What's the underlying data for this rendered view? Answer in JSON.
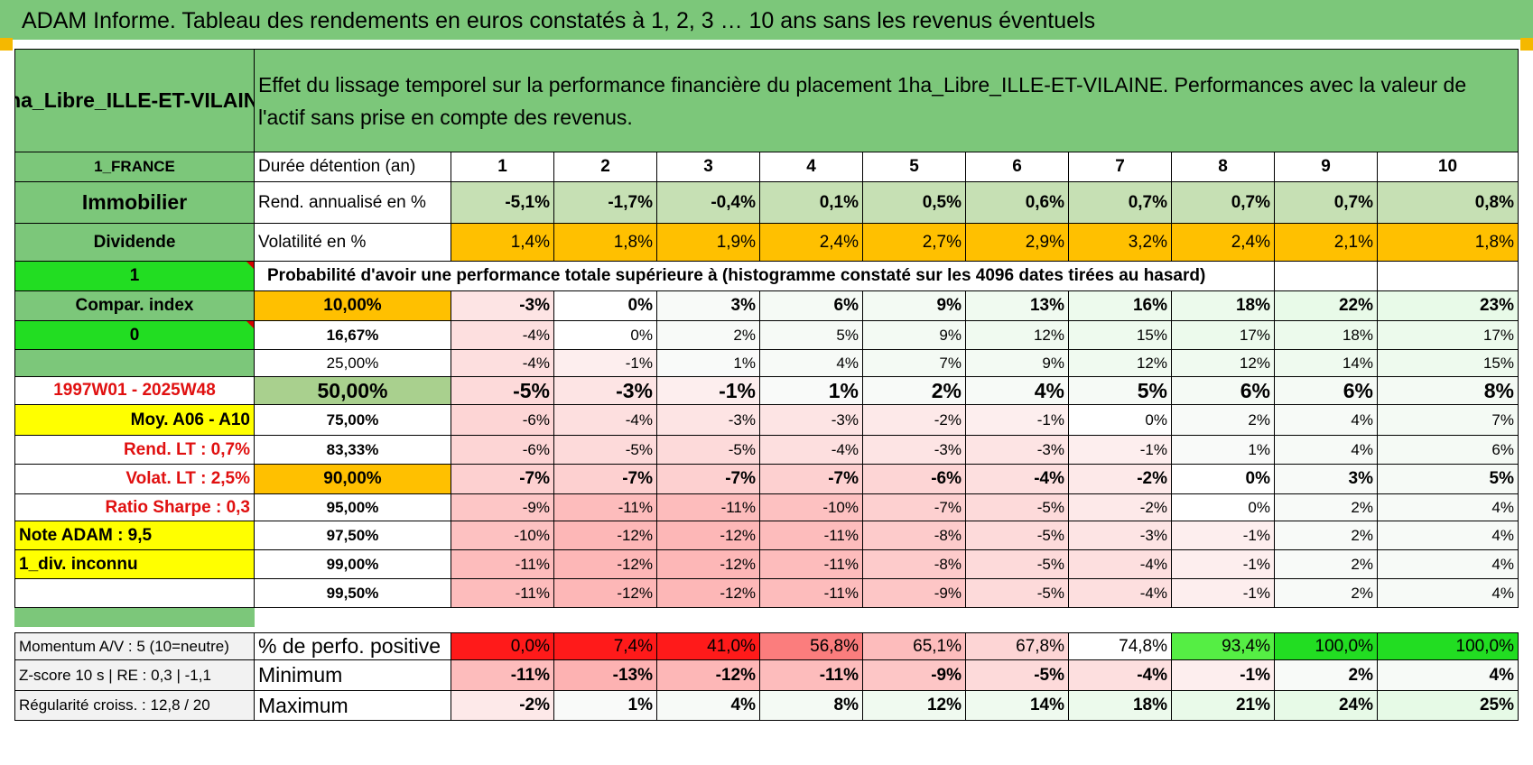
{
  "title": "ADAM Informe. Tableau des rendements en euros constatés à 1, 2, 3 … 10 ans sans les revenus éventuels",
  "asset_name": "1ha_Libre_ILLE-ET-VILAINE",
  "description": "Effet du lissage temporel sur la performance financière du placement 1ha_Libre_ILLE-ET-VILAINE. Performances avec la valeur de l'actif sans prise en compte des revenus.",
  "left_labels": [
    "1_FRANCE",
    "Immobilier",
    "Dividende",
    "1",
    "Compar. index",
    "0",
    "",
    "1997W01 - 2025W48",
    "Moy. A06 - A10",
    "Rend. LT :    0,7%",
    "Volat. LT :    2,5%",
    "Ratio Sharpe :     0,3",
    "Note ADAM : 9,5",
    "1_div. inconnu",
    ""
  ],
  "header_label": "Durée détention (an)",
  "years": [
    "1",
    "2",
    "3",
    "4",
    "5",
    "6",
    "7",
    "8",
    "9",
    "10"
  ],
  "rend_label": "Rend. annualisé en %",
  "rend": [
    "-5,1%",
    "-1,7%",
    "-0,4%",
    "0,1%",
    "0,5%",
    "0,6%",
    "0,7%",
    "0,7%",
    "0,7%",
    "0,8%"
  ],
  "vol_label": "Volatilité en %",
  "vol": [
    "1,4%",
    "1,8%",
    "1,9%",
    "2,4%",
    "2,7%",
    "2,9%",
    "3,2%",
    "2,4%",
    "2,1%",
    "1,8%"
  ],
  "prob_label": "Probabilité d'avoir une performance totale supérieure à (histogramme constaté sur les 4096 dates tirées au hasard)",
  "percentiles": [
    {
      "p": "10,00%",
      "v": [
        "-3%",
        "0%",
        "3%",
        "6%",
        "9%",
        "13%",
        "16%",
        "18%",
        "22%",
        "23%"
      ]
    },
    {
      "p": "16,67%",
      "v": [
        "-4%",
        "0%",
        "2%",
        "5%",
        "9%",
        "12%",
        "15%",
        "17%",
        "18%",
        "17%"
      ]
    },
    {
      "p": "25,00%",
      "v": [
        "-4%",
        "-1%",
        "1%",
        "4%",
        "7%",
        "9%",
        "12%",
        "12%",
        "14%",
        "15%"
      ]
    },
    {
      "p": "50,00%",
      "v": [
        "-5%",
        "-3%",
        "-1%",
        "1%",
        "2%",
        "4%",
        "5%",
        "6%",
        "6%",
        "8%"
      ]
    },
    {
      "p": "75,00%",
      "v": [
        "-6%",
        "-4%",
        "-3%",
        "-3%",
        "-2%",
        "-1%",
        "0%",
        "2%",
        "4%",
        "7%"
      ]
    },
    {
      "p": "83,33%",
      "v": [
        "-6%",
        "-5%",
        "-5%",
        "-4%",
        "-3%",
        "-3%",
        "-1%",
        "1%",
        "4%",
        "6%"
      ]
    },
    {
      "p": "90,00%",
      "v": [
        "-7%",
        "-7%",
        "-7%",
        "-7%",
        "-6%",
        "-4%",
        "-2%",
        "0%",
        "3%",
        "5%"
      ]
    },
    {
      "p": "95,00%",
      "v": [
        "-9%",
        "-11%",
        "-11%",
        "-10%",
        "-7%",
        "-5%",
        "-2%",
        "0%",
        "2%",
        "4%"
      ]
    },
    {
      "p": "97,50%",
      "v": [
        "-10%",
        "-12%",
        "-12%",
        "-11%",
        "-8%",
        "-5%",
        "-3%",
        "-1%",
        "2%",
        "4%"
      ]
    },
    {
      "p": "99,00%",
      "v": [
        "-11%",
        "-12%",
        "-12%",
        "-11%",
        "-8%",
        "-5%",
        "-4%",
        "-1%",
        "2%",
        "4%"
      ]
    },
    {
      "p": "99,50%",
      "v": [
        "-11%",
        "-12%",
        "-12%",
        "-11%",
        "-9%",
        "-5%",
        "-4%",
        "-1%",
        "2%",
        "4%"
      ]
    }
  ],
  "momentum_label": "Momentum A/V : 5 (10=neutre)",
  "zscore_label": "Z-score 10 s | RE : 0,3 | -1,1",
  "regul_label": "Régularité croiss. : 12,8 / 20",
  "pos_label": "% de perfo. positive",
  "pos": [
    "0,0%",
    "7,4%",
    "41,0%",
    "56,8%",
    "65,1%",
    "67,8%",
    "74,8%",
    "93,4%",
    "100,0%",
    "100,0%"
  ],
  "min_label": "Minimum",
  "min": [
    "-11%",
    "-13%",
    "-12%",
    "-11%",
    "-9%",
    "-5%",
    "-4%",
    "-1%",
    "2%",
    "4%"
  ],
  "max_label": "Maximum",
  "max": [
    "-2%",
    "1%",
    "4%",
    "8%",
    "12%",
    "14%",
    "18%",
    "21%",
    "24%",
    "25%"
  ],
  "colors": {
    "green_header": "#7cc77a",
    "green_light": "#c6e0b4",
    "green_bright": "#22dd22",
    "orange": "#ffc000",
    "yellow": "#ffff00",
    "olive": "#a9d08e"
  }
}
